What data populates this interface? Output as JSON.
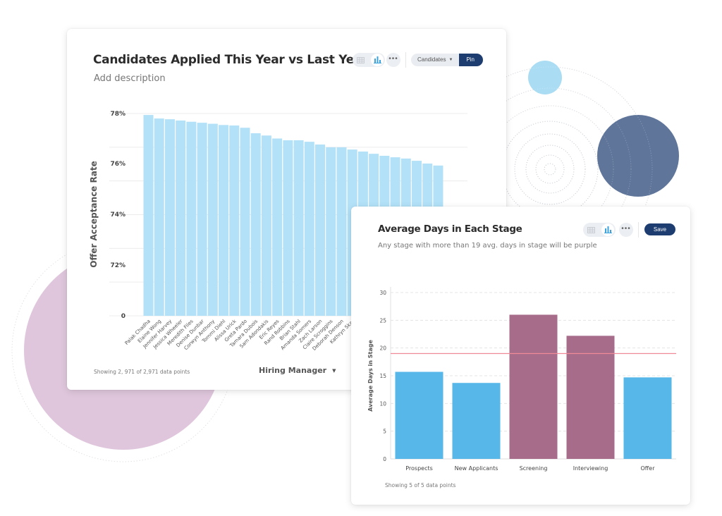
{
  "decor": {
    "colors": {
      "pink_circle": "#dfc6dc",
      "light_blue_circle": "#aadcf3",
      "dark_blue_circle": "#5a7197",
      "dotted_ring": "#c8ccd4"
    }
  },
  "card1": {
    "title": "Candidates Applied This Year vs Last Year",
    "description": "Add description",
    "toolbar": {
      "table_view_icon": "grid-icon",
      "chart_view_icon": "bar-chart-icon",
      "more_label": "•••",
      "dropdown_label": "Candidates",
      "pin_label": "Pin"
    },
    "footnote": "Showing 2, 971 of 2,971 data points",
    "group_by_label": "Hiring Manager",
    "colors": {
      "bar": "#b2e1f8",
      "grid": "#ececec",
      "text": "#333333",
      "accent": "#1d3c70"
    }
  },
  "card2": {
    "title": "Average Days in Each Stage",
    "description": "Any stage with more than 19 avg. days in stage will be purple",
    "toolbar": {
      "table_view_icon": "grid-icon",
      "chart_view_icon": "bar-chart-icon",
      "more_label": "•••",
      "save_label": "Save"
    },
    "footnote": "Showing 5 of 5 data points",
    "colors": {
      "bar_normal": "#56b7e8",
      "bar_highlight": "#a66c8a",
      "threshold_line": "#f08a96",
      "grid": "#e4e4e4"
    }
  },
  "chart_data": [
    {
      "type": "bar",
      "title": "Candidates Applied This Year vs Last Year",
      "xlabel": "Hiring Manager",
      "ylabel": "Offer Acceptance Rate",
      "y_tick_labels": [
        "78%",
        "76%",
        "74%",
        "72%",
        "0"
      ],
      "ylim": [
        70,
        78
      ],
      "grid": true,
      "categories": [
        "Palak Chadha",
        "Elaine Wong",
        "Jennifer Harvey",
        "Jessica Wheeler",
        "Meredith Files",
        "Denise Dunbar",
        "Corwyn Anthony",
        "Tommi Diehl",
        "Alissa Urick",
        "Greta Pardo",
        "Tamara Dubois",
        "Sam Adondakis",
        "Eric Reyes",
        "Rand Robbins",
        "Brian Stahl",
        "Amanda Somers",
        "Zach Larson",
        "Claire Scroggins",
        "Deborah Denson",
        "Kathryn Skar",
        "Amy M",
        "",
        "",
        "",
        "",
        "",
        "",
        ""
      ],
      "values": [
        77.94,
        77.8,
        77.77,
        77.72,
        77.67,
        77.63,
        77.59,
        77.54,
        77.52,
        77.43,
        77.21,
        77.12,
        77.0,
        76.93,
        76.93,
        76.87,
        76.76,
        76.65,
        76.65,
        76.56,
        76.48,
        76.39,
        76.31,
        76.25,
        76.2,
        76.11,
        76.0,
        75.92
      ]
    },
    {
      "type": "bar",
      "title": "Average Days in Each Stage",
      "xlabel": "",
      "ylabel": "Average Days in Stage",
      "ylim": [
        0,
        30
      ],
      "y_ticks": [
        0,
        5,
        10,
        15,
        20,
        25,
        30
      ],
      "grid": true,
      "threshold": 19,
      "categories": [
        "Prospects",
        "New Applicants",
        "Screening",
        "Interviewing",
        "Offer"
      ],
      "values": [
        15.7,
        13.7,
        26.0,
        22.2,
        14.7
      ]
    }
  ]
}
